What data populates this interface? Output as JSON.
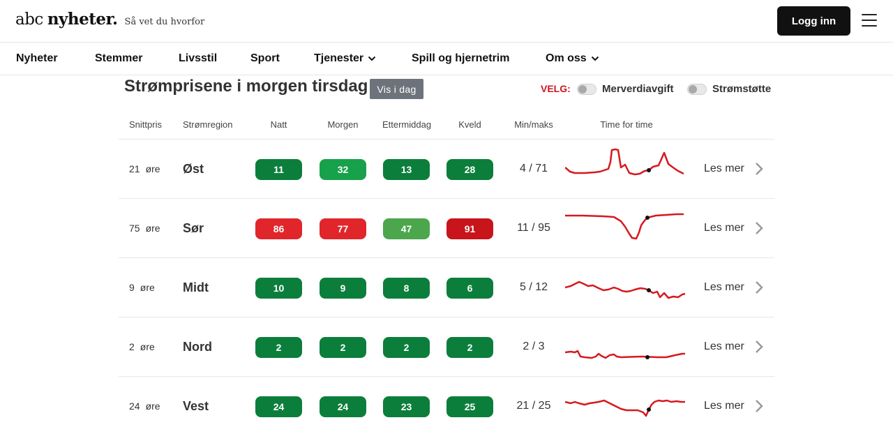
{
  "brand": {
    "logo_abc": "abc",
    "logo_nyheter": "nyheter.",
    "tagline": "Så vet du hvorfor"
  },
  "header": {
    "login_label": "Logg inn",
    "menu_icon": "hamburger-menu-icon"
  },
  "nav": [
    {
      "label": "Nyheter",
      "has_dropdown": false
    },
    {
      "label": "Stemmer",
      "has_dropdown": false
    },
    {
      "label": "Livsstil",
      "has_dropdown": false
    },
    {
      "label": "Sport",
      "has_dropdown": false
    },
    {
      "label": "Tjenester",
      "has_dropdown": true
    },
    {
      "label": "Spill og hjernetrim",
      "has_dropdown": false
    },
    {
      "label": "Om oss",
      "has_dropdown": true
    }
  ],
  "widget": {
    "title": "Strømprisene i morgen tirsdag",
    "today_button": "Vis i dag",
    "velg_label": "VELG:",
    "toggles": [
      {
        "label": "Merverdiavgift",
        "on": false
      },
      {
        "label": "Strømstøtte",
        "on": false
      }
    ]
  },
  "table": {
    "headers": {
      "avg": "Snittpris",
      "region": "Strømregion",
      "night": "Natt",
      "morning": "Morgen",
      "afternoon": "Ettermiddag",
      "evening": "Kveld",
      "minmax": "Min/maks",
      "hourly": "Time for time"
    },
    "more_label": "Les mer",
    "colors": {
      "green_dark": "#0c7e3c",
      "green_mid": "#17a14a",
      "green_light": "#4ca64c",
      "red": "#e0262b",
      "red_dark": "#c8141b",
      "sparkline": "#d7181f",
      "chevron": "#9a9a9a"
    },
    "rows": [
      {
        "price": "21",
        "unit": "øre",
        "region": "Øst",
        "periods": [
          {
            "value": "11",
            "level": "green_dark"
          },
          {
            "value": "32",
            "level": "green_mid"
          },
          {
            "value": "13",
            "level": "green_dark"
          },
          {
            "value": "28",
            "level": "green_dark"
          }
        ],
        "minmax": "4 / 71"
      },
      {
        "price": "75",
        "unit": "øre",
        "region": "Sør",
        "periods": [
          {
            "value": "86",
            "level": "red"
          },
          {
            "value": "77",
            "level": "red"
          },
          {
            "value": "47",
            "level": "green_light"
          },
          {
            "value": "91",
            "level": "red_dark"
          }
        ],
        "minmax": "11 / 95"
      },
      {
        "price": "9",
        "unit": "øre",
        "region": "Midt",
        "periods": [
          {
            "value": "10",
            "level": "green_dark"
          },
          {
            "value": "9",
            "level": "green_dark"
          },
          {
            "value": "8",
            "level": "green_dark"
          },
          {
            "value": "6",
            "level": "green_dark"
          }
        ],
        "minmax": "5 / 12"
      },
      {
        "price": "2",
        "unit": "øre",
        "region": "Nord",
        "periods": [
          {
            "value": "2",
            "level": "green_dark"
          },
          {
            "value": "2",
            "level": "green_dark"
          },
          {
            "value": "2",
            "level": "green_dark"
          },
          {
            "value": "2",
            "level": "green_dark"
          }
        ],
        "minmax": "2 / 3"
      },
      {
        "price": "24",
        "unit": "øre",
        "region": "Vest",
        "periods": [
          {
            "value": "24",
            "level": "green_dark"
          },
          {
            "value": "24",
            "level": "green_dark"
          },
          {
            "value": "23",
            "level": "green_dark"
          },
          {
            "value": "25",
            "level": "green_dark"
          }
        ],
        "minmax": "21 / 25"
      }
    ]
  }
}
